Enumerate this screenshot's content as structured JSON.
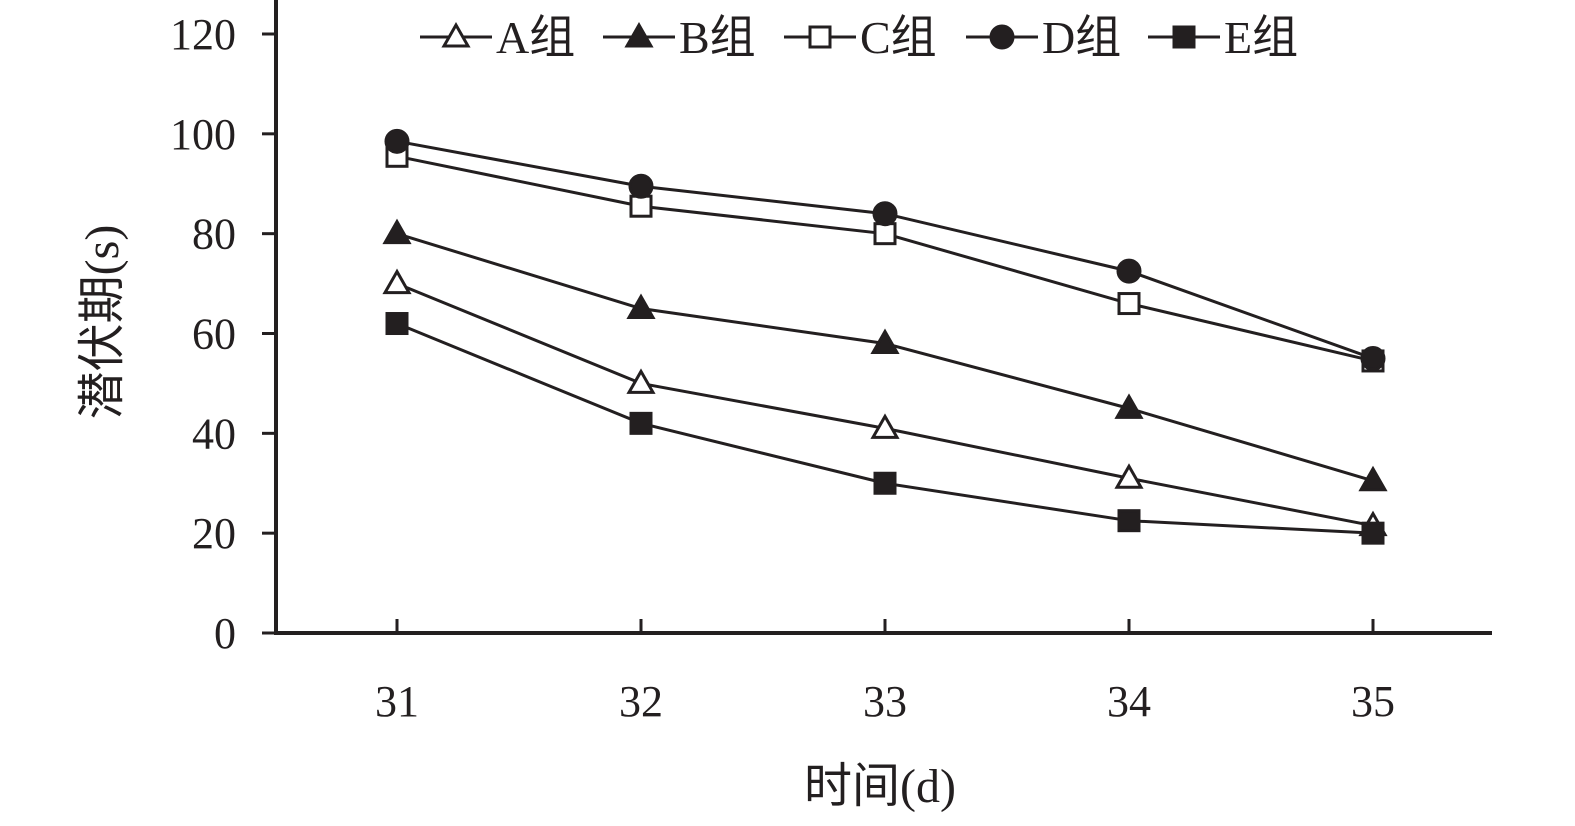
{
  "chart_data": {
    "type": "line",
    "xlabel": "时间(d)",
    "ylabel": "潜伏期(s)",
    "categories": [
      "31",
      "32",
      "33",
      "34",
      "35"
    ],
    "ylim": [
      0,
      120
    ],
    "y_ticks": [
      "0",
      "20",
      "40",
      "60",
      "80",
      "100",
      "120"
    ],
    "legend_position": "top",
    "grid": false,
    "series": [
      {
        "name": "A组",
        "marker": "triangle-open",
        "values": [
          70,
          50,
          41,
          31,
          21.5
        ]
      },
      {
        "name": "B组",
        "marker": "triangle-filled",
        "values": [
          80,
          65,
          58,
          45,
          30.5
        ]
      },
      {
        "name": "C组",
        "marker": "square-open",
        "values": [
          95.5,
          85.5,
          80,
          66,
          54.5
        ]
      },
      {
        "name": "D组",
        "marker": "circle-filled",
        "values": [
          98.5,
          89.5,
          84,
          72.5,
          55
        ]
      },
      {
        "name": "E组",
        "marker": "square-filled",
        "values": [
          62,
          42,
          30,
          22.5,
          20
        ]
      }
    ],
    "colors": {
      "line": "#231f20",
      "marker_fill": "#231f20",
      "open_fill": "#ffffff"
    }
  }
}
